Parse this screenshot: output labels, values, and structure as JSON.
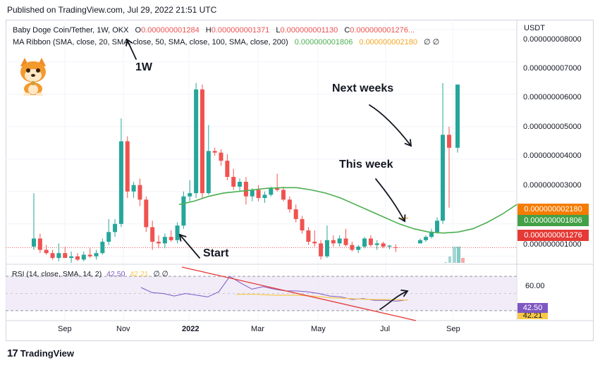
{
  "published": "Published on TradingView.com, Jul 29, 2022 21:51 UTC",
  "legend": {
    "pair": "Baby Doge Coin/Tether, 1W, OKX",
    "o_label": "O",
    "o_value": "0.000000001284",
    "h_label": "H",
    "h_value": "0.000000001371",
    "l_label": "L",
    "l_value": "0.000000001130",
    "c_label": "C",
    "c_value": "0.000000001276...",
    "ma_label": "MA Ribbon (SMA, close, 20, SMA, close, 50, SMA, close, 100, SMA, close, 200)",
    "ma_val1": "0.000000001806",
    "ma_val2": "0.000000002180",
    "ma_rest": "∅  ∅"
  },
  "rsi_legend": {
    "label": "RSI (14, close, SMA, 14, 2)",
    "rsi": "42.50",
    "ma": "42.21",
    "rest": "∅  ∅"
  },
  "price_axis": {
    "unit": "USDT",
    "ticks": [
      "0.000000008000",
      "0.000000007000",
      "0.000000006000",
      "0.000000005000",
      "0.000000004000",
      "0.000000003000",
      "0.000000001000"
    ],
    "tags": {
      "ma_orange": "0.000000002180",
      "ma_green": "0.000000001806",
      "last": "0.000000001276"
    }
  },
  "rsi_axis": {
    "tick": "60.00",
    "tag_rsi": "42.50",
    "tag_ma": "42.21"
  },
  "time_axis": [
    "Sep",
    "Nov",
    "2022",
    "Mar",
    "May",
    "Jul",
    "Sep"
  ],
  "annotations": {
    "tf": "1W",
    "start": "Start",
    "this_week": "This week",
    "next_weeks": "Next weeks"
  },
  "footer": "TradingView",
  "colors": {
    "up": "#26a69a",
    "down": "#ef5350",
    "ma": "#4caf50",
    "ma2": "#f5a623",
    "rsi": "#7e57c2",
    "rsi_ma": "#f7c948",
    "trend": "#e53935"
  },
  "chart_data": {
    "type": "candlestick",
    "timeframe": "1W",
    "y_range": [
      8e-10,
      8.3e-09
    ],
    "candles": [
      {
        "o": 1.3,
        "h": 2.95,
        "l": 1.2,
        "c": 1.55
      },
      {
        "o": 1.55,
        "h": 1.7,
        "l": 1.1,
        "c": 1.2
      },
      {
        "o": 1.2,
        "h": 1.35,
        "l": 1.05,
        "c": 1.1
      },
      {
        "o": 1.1,
        "h": 1.2,
        "l": 0.9,
        "c": 0.95
      },
      {
        "o": 0.95,
        "h": 1.4,
        "l": 0.85,
        "c": 1.1
      },
      {
        "o": 1.1,
        "h": 1.3,
        "l": 0.95,
        "c": 0.95
      },
      {
        "o": 0.95,
        "h": 1.15,
        "l": 0.8,
        "c": 1.0
      },
      {
        "o": 1.0,
        "h": 1.1,
        "l": 0.85,
        "c": 0.9
      },
      {
        "o": 0.9,
        "h": 1.15,
        "l": 0.85,
        "c": 1.05
      },
      {
        "o": 1.05,
        "h": 1.25,
        "l": 0.95,
        "c": 1.0
      },
      {
        "o": 1.0,
        "h": 1.2,
        "l": 0.9,
        "c": 1.1
      },
      {
        "o": 1.1,
        "h": 1.55,
        "l": 1.05,
        "c": 1.45
      },
      {
        "o": 1.45,
        "h": 2.15,
        "l": 1.35,
        "c": 1.75
      },
      {
        "o": 1.75,
        "h": 2.15,
        "l": 1.6,
        "c": 2.0
      },
      {
        "o": 2.0,
        "h": 5.25,
        "l": 1.9,
        "c": 4.55
      },
      {
        "o": 4.55,
        "h": 4.7,
        "l": 2.8,
        "c": 3.0
      },
      {
        "o": 3.0,
        "h": 3.3,
        "l": 2.8,
        "c": 3.2
      },
      {
        "o": 3.2,
        "h": 3.4,
        "l": 2.55,
        "c": 2.75
      },
      {
        "o": 2.75,
        "h": 2.85,
        "l": 1.75,
        "c": 1.9
      },
      {
        "o": 1.9,
        "h": 2.1,
        "l": 1.2,
        "c": 1.45
      },
      {
        "o": 1.45,
        "h": 1.65,
        "l": 1.25,
        "c": 1.4
      },
      {
        "o": 1.4,
        "h": 1.7,
        "l": 1.25,
        "c": 1.6
      },
      {
        "o": 1.6,
        "h": 1.8,
        "l": 1.45,
        "c": 1.5
      },
      {
        "o": 1.5,
        "h": 2.05,
        "l": 1.4,
        "c": 1.95
      },
      {
        "o": 1.95,
        "h": 3.0,
        "l": 1.85,
        "c": 2.85
      },
      {
        "o": 2.85,
        "h": 3.35,
        "l": 2.7,
        "c": 2.95
      },
      {
        "o": 2.95,
        "h": 6.35,
        "l": 2.8,
        "c": 6.15
      },
      {
        "o": 6.15,
        "h": 6.3,
        "l": 2.8,
        "c": 2.95
      },
      {
        "o": 2.95,
        "h": 5.05,
        "l": 2.9,
        "c": 4.25
      },
      {
        "o": 4.25,
        "h": 4.35,
        "l": 4.1,
        "c": 4.2
      },
      {
        "o": 4.2,
        "h": 4.3,
        "l": 3.8,
        "c": 3.95
      },
      {
        "o": 3.95,
        "h": 4.15,
        "l": 3.35,
        "c": 3.45
      },
      {
        "o": 3.45,
        "h": 3.7,
        "l": 3.05,
        "c": 3.15
      },
      {
        "o": 3.15,
        "h": 3.4,
        "l": 3.0,
        "c": 3.3
      },
      {
        "o": 3.3,
        "h": 3.45,
        "l": 2.6,
        "c": 2.85
      },
      {
        "o": 2.85,
        "h": 3.1,
        "l": 2.7,
        "c": 3.05
      },
      {
        "o": 3.05,
        "h": 3.2,
        "l": 2.7,
        "c": 2.8
      },
      {
        "o": 2.8,
        "h": 3.0,
        "l": 2.65,
        "c": 2.9
      },
      {
        "o": 2.9,
        "h": 3.15,
        "l": 2.85,
        "c": 3.1
      },
      {
        "o": 3.1,
        "h": 3.55,
        "l": 3.0,
        "c": 3.05
      },
      {
        "o": 3.05,
        "h": 3.15,
        "l": 2.7,
        "c": 2.75
      },
      {
        "o": 2.75,
        "h": 2.85,
        "l": 2.35,
        "c": 2.45
      },
      {
        "o": 2.45,
        "h": 2.6,
        "l": 2.05,
        "c": 2.15
      },
      {
        "o": 2.15,
        "h": 2.25,
        "l": 1.7,
        "c": 1.8
      },
      {
        "o": 1.8,
        "h": 1.9,
        "l": 1.35,
        "c": 1.45
      },
      {
        "o": 1.45,
        "h": 1.8,
        "l": 1.3,
        "c": 1.4
      },
      {
        "o": 1.4,
        "h": 1.5,
        "l": 0.9,
        "c": 1.0
      },
      {
        "o": 1.0,
        "h": 1.95,
        "l": 0.95,
        "c": 1.5
      },
      {
        "o": 1.5,
        "h": 1.65,
        "l": 1.3,
        "c": 1.4
      },
      {
        "o": 1.4,
        "h": 1.65,
        "l": 1.3,
        "c": 1.55
      },
      {
        "o": 1.55,
        "h": 1.85,
        "l": 1.3,
        "c": 1.35
      },
      {
        "o": 1.35,
        "h": 1.45,
        "l": 1.15,
        "c": 1.2
      },
      {
        "o": 1.2,
        "h": 1.35,
        "l": 1.1,
        "c": 1.3
      },
      {
        "o": 1.3,
        "h": 1.6,
        "l": 1.25,
        "c": 1.55
      },
      {
        "o": 1.55,
        "h": 1.65,
        "l": 1.3,
        "c": 1.35
      },
      {
        "o": 1.35,
        "h": 1.5,
        "l": 1.2,
        "c": 1.4
      },
      {
        "o": 1.4,
        "h": 1.45,
        "l": 1.25,
        "c": 1.3
      },
      {
        "o": 1.3,
        "h": 1.35,
        "l": 1.22,
        "c": 1.33
      },
      {
        "o": 1.28,
        "h": 1.37,
        "l": 1.13,
        "c": 1.27
      }
    ],
    "projected_candles": [
      {
        "o": 1.4,
        "h": 1.55,
        "l": 1.4,
        "c": 1.5
      },
      {
        "o": 1.5,
        "h": 1.65,
        "l": 1.45,
        "c": 1.6
      },
      {
        "o": 1.6,
        "h": 1.85,
        "l": 1.55,
        "c": 1.75
      },
      {
        "o": 1.75,
        "h": 2.2,
        "l": 1.7,
        "c": 2.1
      },
      {
        "o": 2.1,
        "h": 6.35,
        "l": 2.0,
        "c": 4.75
      },
      {
        "o": 4.75,
        "h": 5.0,
        "l": 2.5,
        "c": 4.35
      },
      {
        "o": 4.35,
        "h": 6.3,
        "l": 4.2,
        "c": 6.3
      }
    ],
    "ma20": [
      2.6,
      2.7,
      2.85,
      2.95,
      3.0,
      3.05,
      3.1,
      3.12,
      3.12,
      3.05,
      2.95,
      2.8,
      2.6,
      2.4,
      2.2,
      2.0,
      1.85,
      1.75,
      1.72,
      1.75,
      1.85,
      2.05,
      2.3,
      2.6
    ],
    "ma_other_value": 2.18,
    "rsi": [
      57,
      51,
      50,
      47,
      50,
      48,
      46,
      52,
      70,
      62,
      55,
      58,
      55,
      53,
      53,
      52,
      50,
      47,
      46,
      43,
      44,
      42,
      42,
      41,
      42.5
    ],
    "rsi_ma": [
      49,
      49,
      48,
      48,
      47,
      45,
      44,
      43,
      43,
      42.2
    ],
    "rsi_levels": [
      70,
      30
    ]
  }
}
